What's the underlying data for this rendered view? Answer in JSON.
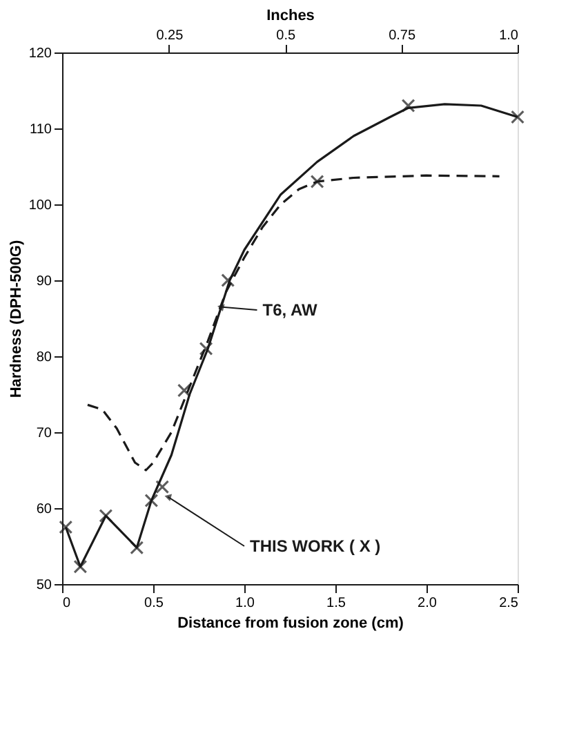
{
  "chart_data": {
    "type": "line",
    "xlabel": "Distance from fusion zone (cm)",
    "ylabel": "Hardness (DPH-500G)",
    "x2label": "Inches",
    "xlim": [
      0,
      2.5
    ],
    "xticks": [
      0,
      {
        "value": 0.5,
        "label": "0.5"
      },
      {
        "value": 1,
        "label": "1.0"
      },
      {
        "value": 1.5,
        "label": "1.5"
      },
      {
        "value": 2,
        "label": "2.0"
      },
      {
        "value": 2.5,
        "label": "2.5"
      }
    ],
    "ylim": [
      50,
      120
    ],
    "yticks": [
      50,
      60,
      70,
      80,
      90,
      100,
      110,
      120
    ],
    "x2lim": [
      0.02,
      1.0
    ],
    "x2ticks": [
      0.25,
      {
        "value": 0.5,
        "label": "0.5"
      },
      0.75,
      {
        "value": 1,
        "label": "1.0"
      }
    ],
    "grid": false,
    "series": [
      {
        "line_style": "solid",
        "color": "#1a1a1a",
        "x": [
          0.02,
          0.1,
          0.24,
          0.41,
          0.49,
          0.6,
          0.7,
          0.8,
          0.92,
          1.0,
          1.2,
          1.4,
          1.6,
          1.8,
          1.9,
          2.1,
          2.3,
          2.5
        ],
        "values": [
          57.5,
          52.3,
          59,
          54.8,
          61,
          67,
          75,
          81,
          90,
          94,
          101.3,
          105.6,
          109,
          111.5,
          112.7,
          113.2,
          113,
          111.5
        ]
      },
      {
        "line_style": "dashed",
        "color": "#1a1a1a",
        "x": [
          0.14,
          0.22,
          0.3,
          0.4,
          0.46,
          0.5,
          0.6,
          0.7,
          0.8,
          0.9,
          1.0,
          1.1,
          1.2,
          1.3,
          1.4,
          1.6,
          2.0,
          2.4
        ],
        "values": [
          73.6,
          73,
          70.5,
          66,
          65,
          66,
          70,
          76,
          82,
          88.5,
          93,
          97,
          100,
          102,
          103,
          103.5,
          103.8,
          103.7
        ]
      },
      {
        "type": "scatter",
        "marker": "cross",
        "color": "#1a1a1a",
        "x": [
          0.02,
          0.1,
          0.24,
          0.41,
          0.49,
          0.55,
          0.67,
          0.79,
          0.91,
          1.4,
          1.9,
          2.5
        ],
        "values": [
          57.5,
          52.3,
          59,
          54.8,
          61,
          62.8,
          75.5,
          81,
          90,
          103,
          113,
          111.5
        ]
      }
    ],
    "annotations": [
      {
        "text": "T6, AW",
        "x": 0.87,
        "y": 86.5
      },
      {
        "text": "THIS WORK ( X )",
        "x": 0.58,
        "y": 61.5
      }
    ]
  }
}
